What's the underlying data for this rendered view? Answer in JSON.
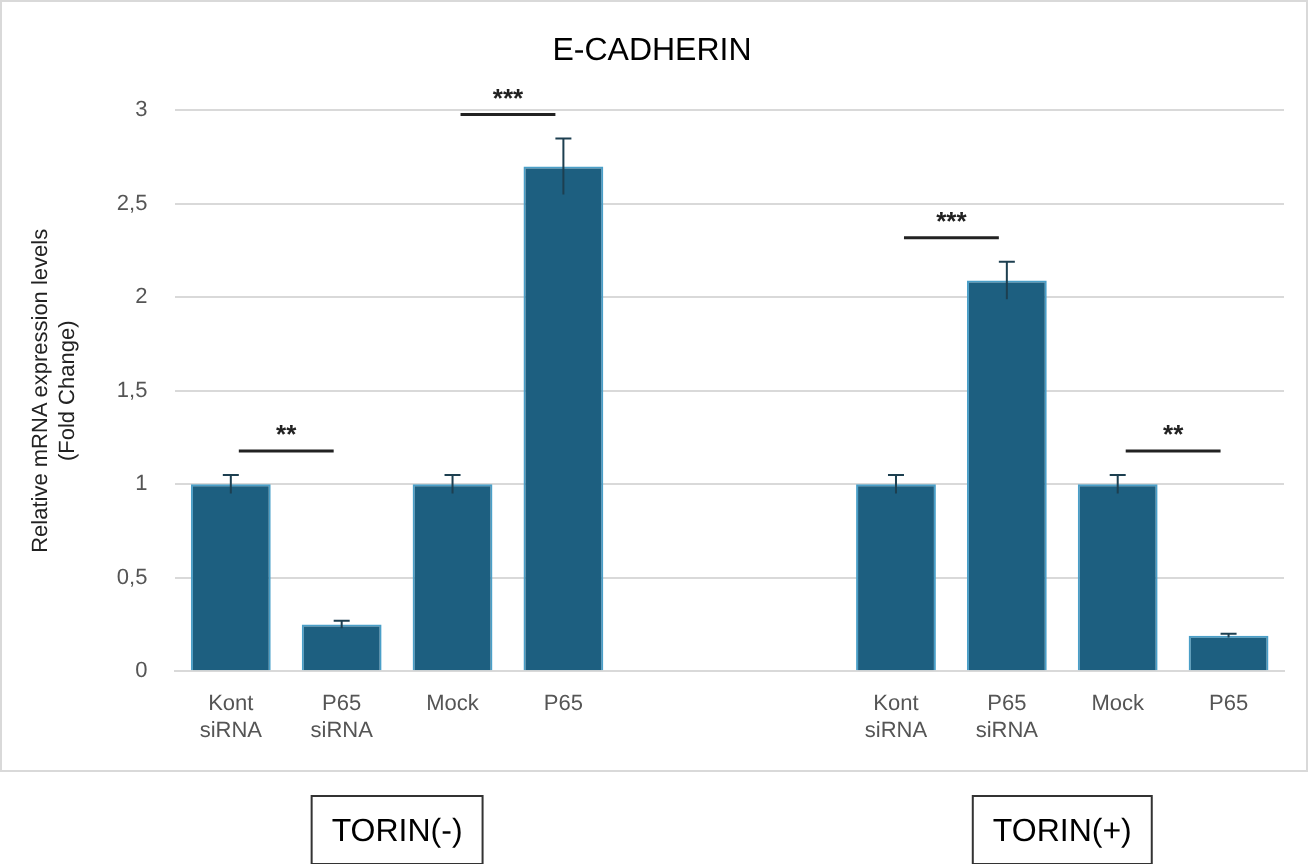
{
  "chart_data": {
    "type": "bar",
    "title": "E-CADHERIN",
    "ylabel": "Relative mRNA expression levels (Fold Change)",
    "categories": [
      "Kont siRNA",
      "P65 siRNA",
      "Mock",
      "P65",
      null,
      null,
      "Kont siRNA",
      "P65 siRNA",
      "Mock",
      "P65"
    ],
    "values": [
      1,
      0.25,
      1,
      2.7,
      null,
      null,
      1,
      2.09,
      1,
      0.19
    ],
    "errors": [
      0.05,
      0.02,
      0.05,
      0.15,
      null,
      null,
      0.05,
      0.1,
      0.05,
      0.01
    ],
    "color": "#1d5f80",
    "ylim": [
      0,
      3
    ],
    "yticks": [
      0,
      {
        "value": 0.5,
        "label": "0,5"
      },
      1,
      {
        "value": 1.5,
        "label": "1,5"
      },
      2,
      {
        "value": 2.5,
        "label": "2,5"
      },
      3
    ],
    "grid": "y",
    "legend": false,
    "annotations": [
      "**",
      "***",
      "***",
      "**",
      "TORIN(-)",
      "TORIN(+)"
    ]
  }
}
